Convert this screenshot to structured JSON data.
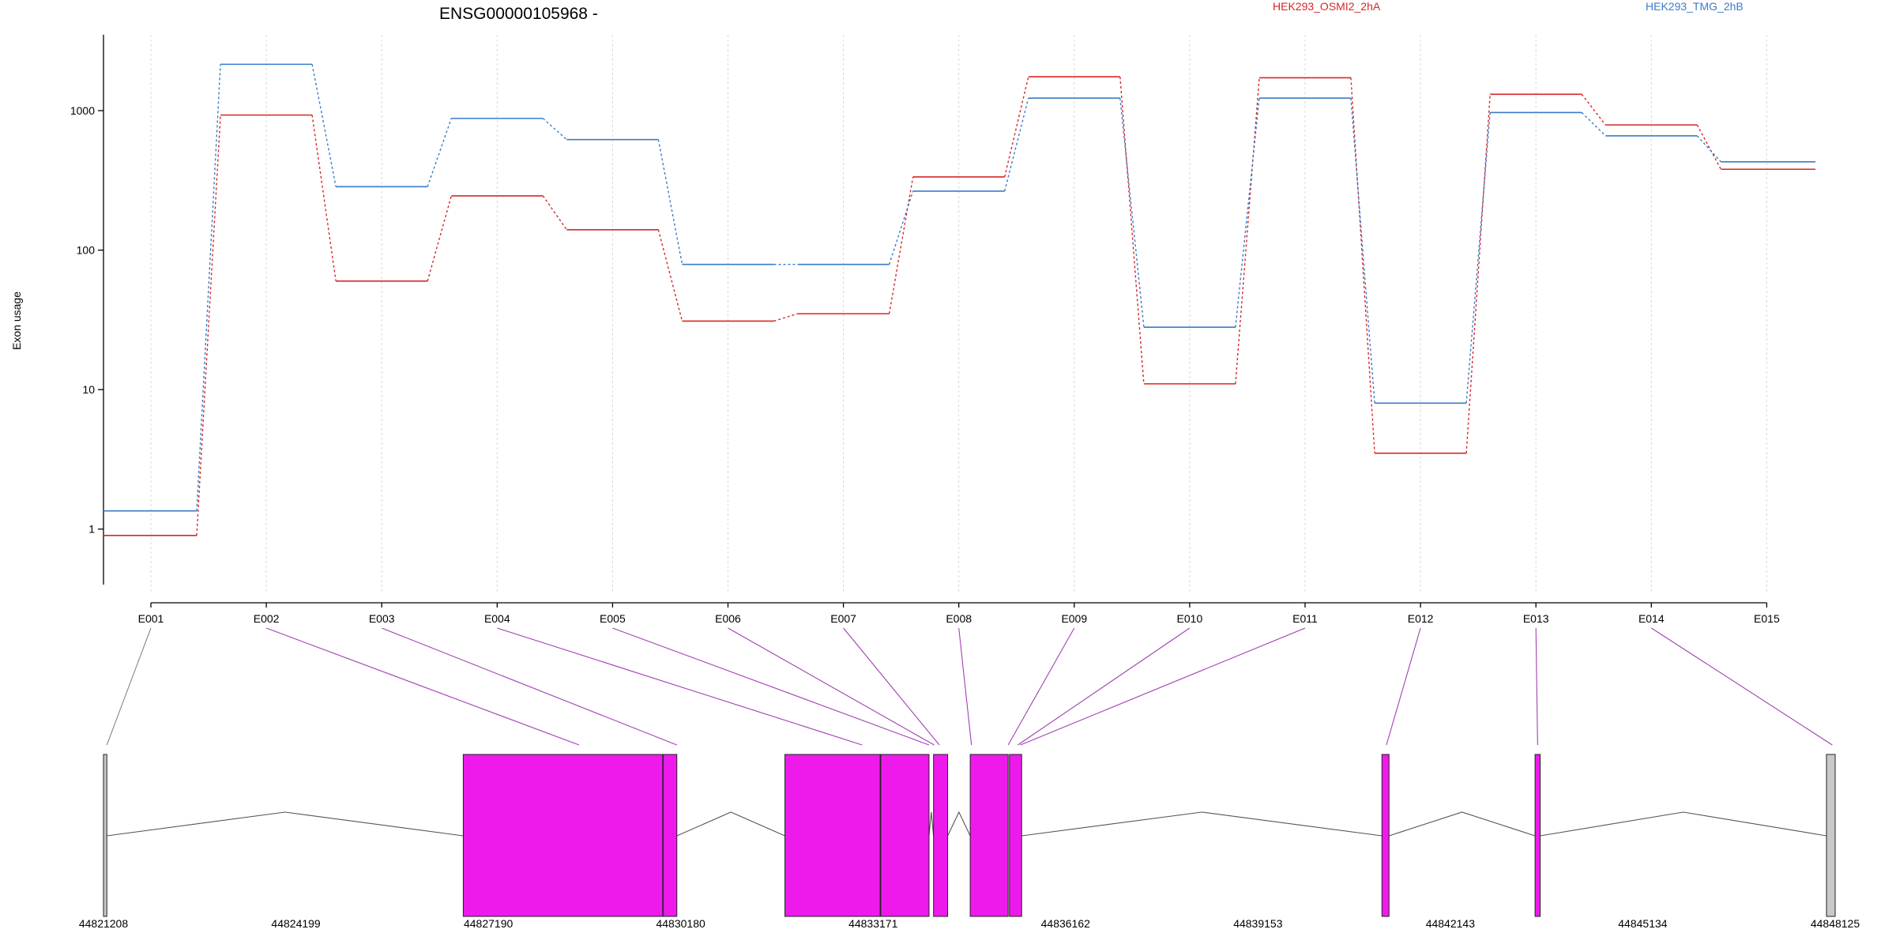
{
  "chart_data": [
    {
      "type": "line",
      "title": "ENSG00000105968 -",
      "ylabel": "Exon usage",
      "yscale": "log",
      "ylim": [
        0.4,
        3500
      ],
      "yticks": [
        1,
        10,
        100,
        1000
      ],
      "ytick_labels": [
        "1",
        "10",
        "100",
        "1000"
      ],
      "grid": "vertical dotted",
      "legend_placement": "top",
      "categories": [
        "E001",
        "E002",
        "E003",
        "E004",
        "E005",
        "E006",
        "E007",
        "E008",
        "E009",
        "E010",
        "E011",
        "E012",
        "E013",
        "E014",
        "E015"
      ],
      "series": [
        {
          "name": "HEK293_OSMI2_2hA",
          "color": "#d62728",
          "values": [
            0.9,
            930,
            60,
            245,
            140,
            31,
            35,
            335,
            1750,
            11,
            1720,
            3.5,
            1310,
            790,
            380
          ]
        },
        {
          "name": "HEK293_TMG_2hB",
          "color": "#3a7bc8",
          "values": [
            1.35,
            2150,
            285,
            880,
            620,
            79,
            79,
            265,
            1230,
            28,
            1230,
            8,
            970,
            660,
            430
          ]
        }
      ]
    },
    {
      "type": "diagram",
      "description_of_kind": "gene model",
      "exon_color": "#ee1aec",
      "terminal_color": "#c8c8c8",
      "x_ticks": [
        "44821208",
        "44824199",
        "44827190",
        "44830180",
        "44833171",
        "44836162",
        "44839153",
        "44842143",
        "44845134",
        "44848125"
      ],
      "xlim": [
        44821208,
        44848125
      ],
      "exons": [
        {
          "start": 44821208,
          "end": 44821260,
          "kind": "terminal"
        },
        {
          "start": 44826800,
          "end": 44829900,
          "kind": "coding"
        },
        {
          "start": 44829910,
          "end": 44830120,
          "kind": "coding"
        },
        {
          "start": 44831800,
          "end": 44833280,
          "kind": "coding"
        },
        {
          "start": 44833290,
          "end": 44834040,
          "kind": "coding"
        },
        {
          "start": 44834110,
          "end": 44834330,
          "kind": "coding"
        },
        {
          "start": 44834680,
          "end": 44835270,
          "kind": "coding"
        },
        {
          "start": 44835290,
          "end": 44835480,
          "kind": "coding"
        },
        {
          "start": 44841080,
          "end": 44841190,
          "kind": "coding"
        },
        {
          "start": 44843460,
          "end": 44843540,
          "kind": "coding"
        },
        {
          "start": 44847990,
          "end": 44848125,
          "kind": "terminal"
        }
      ],
      "connector_targets": [
        44821260,
        44828600,
        44830120,
        44833000,
        44834040,
        44834120,
        44834200,
        44834700,
        44835270,
        44835420,
        44835460,
        44841150,
        44843500,
        44848080
      ]
    }
  ],
  "colors": {
    "line_series_1": "#d62728",
    "line_series_2": "#3a7bc8",
    "connector": "#a040b0",
    "intron": "#555555"
  }
}
